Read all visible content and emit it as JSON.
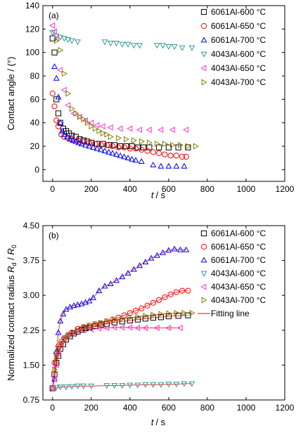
{
  "chart_data": [
    {
      "type": "scatter",
      "panel_label": "(a)",
      "xlabel_var": "t",
      "xlabel_unit": "/ s",
      "ylabel": "Contact angle / (°)",
      "xlim": [
        -50,
        1200
      ],
      "ylim": [
        -10,
        140
      ],
      "xticks": [
        "0",
        "200",
        "400",
        "600",
        "800",
        "1000",
        "1200"
      ],
      "yticks": [
        "0",
        "20",
        "40",
        "60",
        "80",
        "100",
        "120",
        "140"
      ],
      "legend_position": "top-right",
      "series": [
        {
          "name": "6061Al-600 °C",
          "marker": "square",
          "color": "#000000",
          "x": [
            0,
            10,
            20,
            30,
            40,
            55,
            70,
            85,
            100,
            120,
            140,
            160,
            180,
            200,
            230,
            260,
            290,
            320,
            350,
            380,
            410,
            440,
            470,
            500,
            550,
            600,
            650,
            700
          ],
          "y": [
            112,
            100,
            60,
            48,
            40,
            35,
            33,
            31,
            29,
            28,
            26,
            25,
            24,
            23,
            22,
            22,
            21,
            21,
            20,
            20,
            20,
            19,
            19,
            19,
            19,
            19,
            19,
            19
          ]
        },
        {
          "name": "6061Al-650 °C",
          "marker": "circle",
          "color": "#ff0000",
          "x": [
            0,
            10,
            20,
            30,
            45,
            60,
            80,
            100,
            130,
            160,
            190,
            220,
            250,
            280,
            310,
            340,
            370,
            400,
            430,
            460,
            490,
            520,
            550,
            580,
            610,
            640,
            670,
            690
          ],
          "y": [
            65,
            54,
            42,
            37,
            30,
            28,
            27,
            26,
            25,
            24,
            23,
            22,
            21,
            21,
            20,
            19,
            19,
            18,
            18,
            17,
            16,
            15,
            14,
            13,
            12,
            12,
            11,
            11
          ]
        },
        {
          "name": "6061Al-700 °C",
          "marker": "triangle-up",
          "color": "#0000ff",
          "x": [
            10,
            20,
            30,
            40,
            50,
            60,
            75,
            90,
            105,
            120,
            135,
            150,
            170,
            190,
            210,
            230,
            250,
            270,
            290,
            310,
            330,
            350,
            370,
            390,
            410,
            430,
            460,
            520,
            560,
            600,
            640,
            680
          ],
          "y": [
            88,
            78,
            62,
            40,
            33,
            30,
            28,
            26,
            25,
            24,
            23,
            22,
            21,
            20,
            19,
            18,
            17,
            16,
            15,
            14,
            13,
            12,
            11,
            10,
            9,
            8,
            7,
            4,
            3,
            3,
            3,
            3
          ]
        },
        {
          "name": "4043Al-600 °C",
          "marker": "triangle-down",
          "color": "#339999",
          "x": [
            0,
            20,
            40,
            60,
            80,
            100,
            130,
            270,
            300,
            330,
            360,
            390,
            420,
            450,
            540,
            570,
            600,
            630,
            670,
            720
          ],
          "y": [
            117,
            114,
            113,
            112,
            111,
            110,
            109,
            109,
            108,
            108,
            107,
            107,
            106,
            106,
            106,
            106,
            105,
            105,
            104,
            104
          ]
        },
        {
          "name": "4043Al-650 °C",
          "marker": "triangle-left",
          "color": "#ff33cc",
          "x": [
            0,
            10,
            20,
            40,
            60,
            80,
            110,
            140,
            170,
            200,
            230,
            260,
            300,
            350,
            400,
            450,
            500,
            560,
            620,
            690
          ],
          "y": [
            123,
            118,
            112,
            85,
            68,
            55,
            48,
            45,
            42,
            40,
            38,
            37,
            36,
            35,
            35,
            34,
            34,
            34,
            34,
            34
          ]
        },
        {
          "name": "4043Al-700 °C",
          "marker": "triangle-right",
          "color": "#808000",
          "x": [
            20,
            40,
            60,
            80,
            100,
            120,
            140,
            160,
            180,
            200,
            220,
            240,
            260,
            280,
            300,
            340,
            380,
            420,
            460,
            500,
            540,
            580,
            620,
            660,
            700,
            740
          ],
          "y": [
            110,
            102,
            82,
            65,
            52,
            48,
            45,
            43,
            40,
            37,
            35,
            33,
            31,
            30,
            28,
            27,
            26,
            25,
            24,
            23,
            22,
            22,
            21,
            21,
            20,
            20
          ]
        }
      ]
    },
    {
      "type": "scatter",
      "panel_label": "(b)",
      "xlabel_var": "t",
      "xlabel_unit": "/ s",
      "ylabel_prefix": "Normalized contact radius ",
      "ylabel_var1": "R",
      "ylabel_sub1": "d",
      "ylabel_sep": " / ",
      "ylabel_var2": "R",
      "ylabel_sub2": "0",
      "xlim": [
        -50,
        1200
      ],
      "ylim": [
        0.75,
        4.5
      ],
      "xticks": [
        "0",
        "200",
        "400",
        "600",
        "800",
        "1000",
        "1200"
      ],
      "yticks": [
        "0.75",
        "1.50",
        "2.25",
        "3.00",
        "3.75",
        "4.50"
      ],
      "legend_position": "top-right",
      "fitting_line_label": "Fitting line",
      "fitting_color": "#ff3333",
      "series": [
        {
          "name": "6061Al-600 °C",
          "marker": "square",
          "color": "#000000",
          "x": [
            0,
            10,
            20,
            30,
            40,
            55,
            70,
            90,
            110,
            130,
            150,
            170,
            190,
            220,
            250,
            280,
            320,
            360,
            400,
            440,
            480,
            520,
            560,
            600,
            650,
            700
          ],
          "y": [
            1.0,
            1.3,
            1.55,
            1.7,
            1.85,
            1.95,
            2.05,
            2.12,
            2.18,
            2.22,
            2.26,
            2.29,
            2.31,
            2.34,
            2.37,
            2.39,
            2.42,
            2.44,
            2.46,
            2.48,
            2.5,
            2.52,
            2.53,
            2.55,
            2.56,
            2.57
          ]
        },
        {
          "name": "6061Al-650 °C",
          "marker": "circle",
          "color": "#ff0000",
          "x": [
            0,
            10,
            20,
            30,
            45,
            60,
            80,
            100,
            130,
            160,
            190,
            220,
            250,
            280,
            310,
            340,
            370,
            400,
            430,
            460,
            490,
            520,
            550,
            580,
            610,
            640,
            670,
            700
          ],
          "y": [
            1.0,
            1.55,
            1.75,
            1.9,
            2.0,
            2.08,
            2.15,
            2.2,
            2.28,
            2.32,
            2.35,
            2.38,
            2.4,
            2.44,
            2.48,
            2.52,
            2.57,
            2.62,
            2.67,
            2.72,
            2.78,
            2.84,
            2.9,
            2.96,
            3.02,
            3.07,
            3.1,
            3.1
          ]
        },
        {
          "name": "6061Al-700 °C",
          "marker": "triangle-up",
          "color": "#0000ff",
          "x": [
            10,
            20,
            30,
            40,
            55,
            70,
            90,
            110,
            130,
            150,
            170,
            190,
            210,
            240,
            270,
            300,
            330,
            360,
            390,
            420,
            450,
            480,
            510,
            540,
            570,
            600,
            630,
            660,
            690
          ],
          "y": [
            1.2,
            1.8,
            2.2,
            2.45,
            2.6,
            2.7,
            2.75,
            2.78,
            2.8,
            2.82,
            2.85,
            2.88,
            2.95,
            3.1,
            3.2,
            3.25,
            3.32,
            3.4,
            3.48,
            3.56,
            3.64,
            3.72,
            3.8,
            3.86,
            3.92,
            3.97,
            4.0,
            3.98,
            3.98
          ]
        },
        {
          "name": "4043Al-600 °C",
          "marker": "triangle-down",
          "color": "#339999",
          "x": [
            0,
            20,
            40,
            70,
            100,
            130,
            160,
            200,
            280,
            320,
            360,
            400,
            440,
            480,
            520,
            560,
            600,
            640,
            680,
            720
          ],
          "y": [
            1.0,
            1.02,
            1.03,
            1.03,
            1.04,
            1.05,
            1.05,
            1.05,
            1.06,
            1.06,
            1.06,
            1.07,
            1.07,
            1.08,
            1.08,
            1.08,
            1.09,
            1.09,
            1.1,
            1.1
          ]
        },
        {
          "name": "4043Al-650 °C",
          "marker": "triangle-left",
          "color": "#ff33cc",
          "x": [
            0,
            10,
            20,
            30,
            45,
            60,
            80,
            100,
            130,
            160,
            200,
            240,
            280,
            320,
            360,
            400,
            440,
            480,
            540,
            600,
            660
          ],
          "y": [
            1.0,
            1.2,
            1.5,
            1.75,
            1.95,
            2.05,
            2.12,
            2.18,
            2.22,
            2.25,
            2.27,
            2.29,
            2.3,
            2.31,
            2.31,
            2.31,
            2.3,
            2.3,
            2.3,
            2.3,
            2.3
          ]
        },
        {
          "name": "4043Al-700 °C",
          "marker": "triangle-right",
          "color": "#808000",
          "x": [
            10,
            20,
            30,
            45,
            60,
            80,
            100,
            130,
            160,
            190,
            220,
            250,
            280,
            320,
            360,
            400,
            440,
            480,
            520,
            560,
            600,
            640,
            680,
            720
          ],
          "y": [
            1.4,
            1.65,
            1.8,
            1.95,
            2.05,
            2.12,
            2.18,
            2.25,
            2.3,
            2.34,
            2.38,
            2.41,
            2.44,
            2.47,
            2.5,
            2.52,
            2.54,
            2.56,
            2.58,
            2.6,
            2.61,
            2.62,
            2.62,
            2.62
          ]
        }
      ]
    }
  ]
}
